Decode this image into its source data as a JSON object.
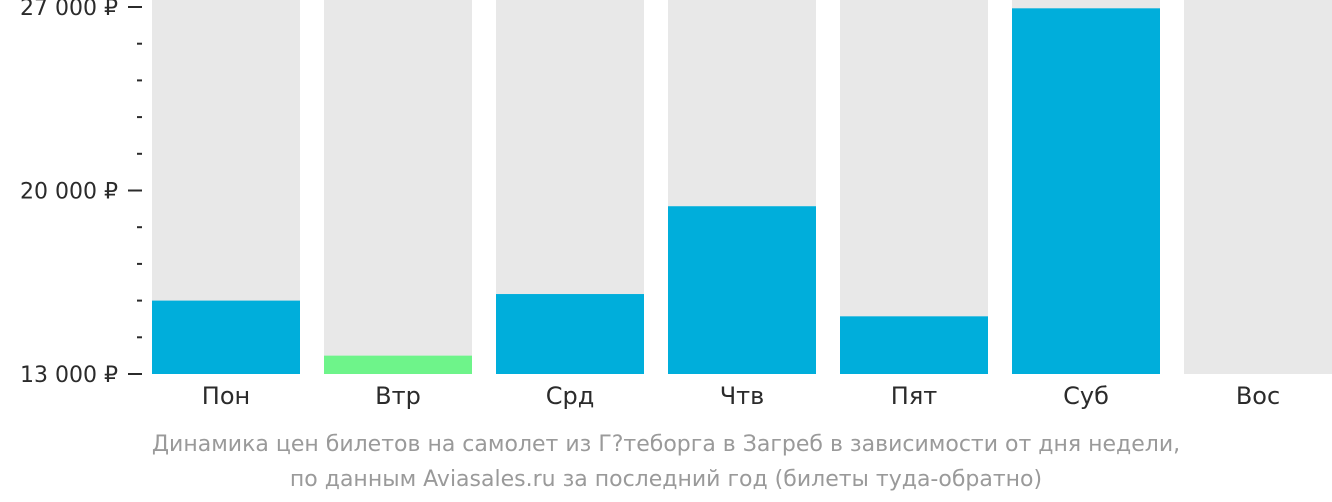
{
  "chart_data": {
    "type": "bar",
    "categories": [
      "Пон",
      "Втр",
      "Срд",
      "Чтв",
      "Пят",
      "Суб",
      "Вос"
    ],
    "values": [
      15800,
      13700,
      16050,
      19400,
      15200,
      26950,
      null
    ],
    "ylim": [
      13000,
      27000
    ],
    "yticks": [
      {
        "value": 27000,
        "label": "27 000 ₽"
      },
      {
        "value": 20000,
        "label": "20 000 ₽"
      },
      {
        "value": 13000,
        "label": "13 000 ₽"
      }
    ],
    "minor_tick_step": 1400,
    "highlight_index": 1,
    "colors": {
      "bar": "#00aedb",
      "highlight": "#6ef48a",
      "background_column": "#e8e8e8",
      "tick": "#2b2b2b"
    },
    "caption_line1": "Динамика цен билетов на самолет из Г?теборга в Загреб в зависимости от дня недели,",
    "caption_line2": "по данным Aviasales.ru за последний год (билеты туда-обратно)"
  }
}
